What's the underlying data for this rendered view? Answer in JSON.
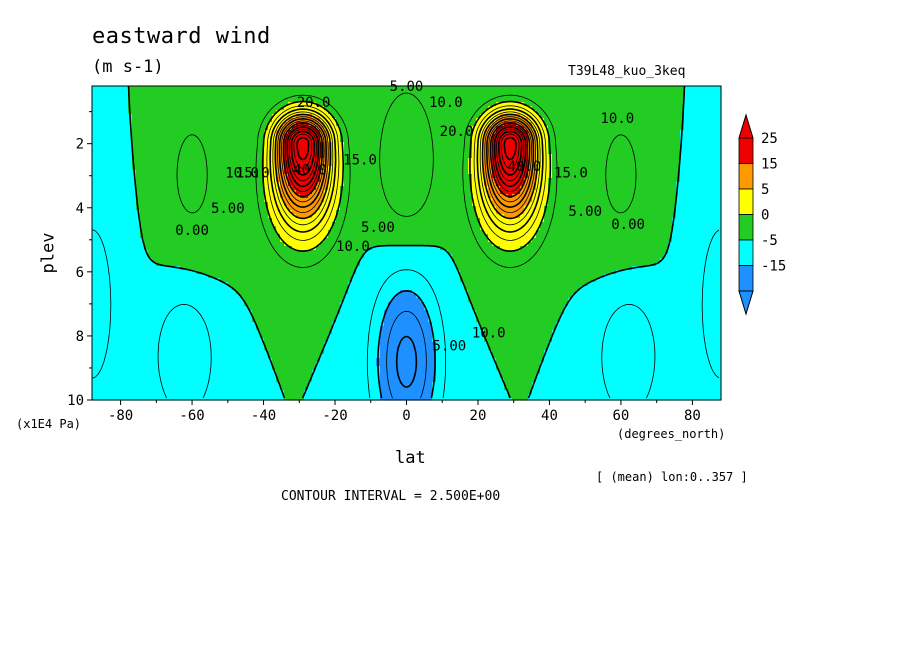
{
  "chart_data": {
    "type": "heatmap",
    "title": "eastward wind",
    "units": "(m s-1)",
    "run_label": "T39L48_kuo_3keq",
    "xlabel": "lat",
    "x_units": "(degrees_north)",
    "ylabel": "plev",
    "y_units": "(x1E4 Pa)",
    "mean_note": "[ (mean) lon:0..357 ]",
    "contour_interval_text": "CONTOUR INTERVAL = 2.500E+00",
    "xlim": [
      -88,
      88
    ],
    "ylim": [
      10,
      0.2
    ],
    "x_ticks": [
      "-80",
      "-60",
      "-40",
      "-20",
      "0",
      "20",
      "40",
      "60",
      "80"
    ],
    "x_tick_values": [
      -80,
      -60,
      -40,
      -20,
      0,
      20,
      40,
      60,
      80
    ],
    "y_ticks": [
      "2",
      "4",
      "6",
      "8",
      "10"
    ],
    "y_tick_values": [
      2,
      4,
      6,
      8,
      10
    ],
    "colorbar": {
      "labels": [
        "25",
        "15",
        "5",
        "0",
        "-5",
        "-15"
      ],
      "levels": [
        -15,
        -5,
        0,
        5,
        15,
        25
      ],
      "colors": [
        "#1e90ff",
        "#00ffff",
        "#22cc22",
        "#ffff00",
        "#ff9900",
        "#ee0000"
      ],
      "below_color": "#1e90ff",
      "above_color": "#ee0000"
    },
    "bands": [
      {
        "min": -100,
        "max": -5,
        "color": "#1e90ff"
      },
      {
        "min": -5,
        "max": 0,
        "color": "#00ffff"
      },
      {
        "min": 0,
        "max": 5,
        "color": "#22cc22"
      },
      {
        "min": 5,
        "max": 15,
        "color": "#ffff00"
      },
      {
        "min": 15,
        "max": 25,
        "color": "#ff9900"
      },
      {
        "min": 25,
        "max": 200,
        "color": "#ee0000"
      }
    ],
    "jets": [
      {
        "lat": -29,
        "plev": 2,
        "peak": 42
      },
      {
        "lat": 29,
        "plev": 2,
        "peak": 42
      }
    ],
    "contour_labels": [
      {
        "text": "0.00",
        "lat": -60,
        "plev": 4.7
      },
      {
        "text": "5.00",
        "lat": -50,
        "plev": 4.0
      },
      {
        "text": "10.0",
        "lat": -46,
        "plev": 2.9
      },
      {
        "text": "15.0",
        "lat": -43,
        "plev": 2.9
      },
      {
        "text": "40.0",
        "lat": -27,
        "plev": 2.8
      },
      {
        "text": "20.0",
        "lat": -26,
        "plev": 0.7
      },
      {
        "text": "15.0",
        "lat": -13,
        "plev": 2.5
      },
      {
        "text": "10.0",
        "lat": -15,
        "plev": 5.2
      },
      {
        "text": "5.00",
        "lat": -8,
        "plev": 4.6
      },
      {
        "text": "5.00",
        "lat": 0,
        "plev": 0.2
      },
      {
        "text": "10.0",
        "lat": 11,
        "plev": 0.7
      },
      {
        "text": "20.0",
        "lat": 14,
        "plev": 1.6
      },
      {
        "text": "40.0",
        "lat": 33,
        "plev": 2.7
      },
      {
        "text": "15.0",
        "lat": 46,
        "plev": 2.9
      },
      {
        "text": "5.00",
        "lat": 50,
        "plev": 4.1
      },
      {
        "text": "10.0",
        "lat": 59,
        "plev": 1.2
      },
      {
        "text": "0.00",
        "lat": 62,
        "plev": 4.5
      },
      {
        "text": "10.0",
        "lat": 23,
        "plev": 7.9
      },
      {
        "text": "5.00",
        "lat": 12,
        "plev": 8.3
      }
    ]
  }
}
